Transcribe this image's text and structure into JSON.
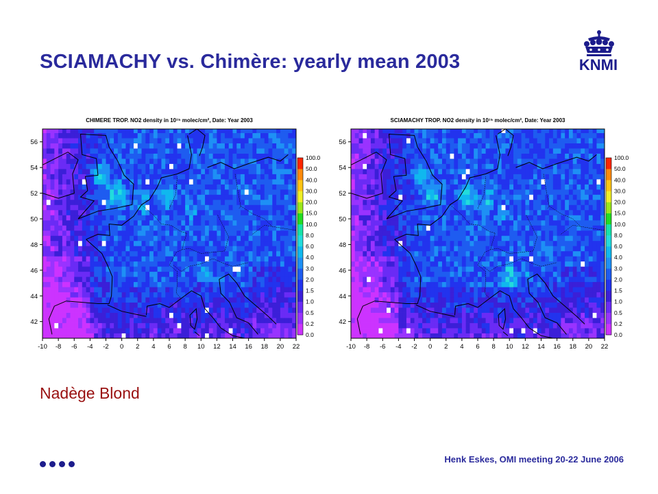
{
  "slide": {
    "title": "SCIAMACHY vs. Chimère: yearly mean 2003",
    "author": "Nadège Blond",
    "footer": "Henk Eskes, OMI meeting 20-22 June 2006",
    "logo_text": "KNMI",
    "logo_icon": "crown-icon",
    "colors": {
      "title": "#2a2a9c",
      "author": "#991010",
      "logo": "#1c1c8c"
    }
  },
  "chart_data": [
    {
      "type": "heatmap",
      "title": "CHIMERE TROP. NO2 density in 10¹⁵ molec/cm², Date: Year 2003",
      "xticks": [
        "-10",
        "-8",
        "-6",
        "-4",
        "-2",
        "0",
        "2",
        "4",
        "6",
        "8",
        "10",
        "12",
        "14",
        "16",
        "18",
        "20",
        "22"
      ],
      "yticks": [
        "42",
        "44",
        "46",
        "48",
        "50",
        "52",
        "54",
        "56"
      ],
      "xlim": [
        -10,
        22
      ],
      "ylim": [
        40.7,
        57
      ],
      "colorbar": {
        "labels": [
          "0.0",
          "0.2",
          "0.5",
          "1.0",
          "1.5",
          "2.0",
          "3.0",
          "4.0",
          "6.0",
          "8.0",
          "10.0",
          "15.0",
          "20.0",
          "30.0",
          "40.0",
          "50.0",
          "100.0"
        ],
        "colors": [
          "#cc33ff",
          "#9933ff",
          "#6a2bf5",
          "#3b1fd8",
          "#2233ee",
          "#1e5cf0",
          "#1e90f5",
          "#10b8ee",
          "#22dcdc",
          "#16e3a8",
          "#22dd22",
          "#9be81a",
          "#f0f026",
          "#ffc414",
          "#ff8a0a",
          "#ff2600"
        ]
      },
      "hotspots": [
        {
          "lon": -3,
          "lat": 53.4,
          "intensity": 7.5,
          "r": 1.5
        },
        {
          "lon": -1,
          "lat": 51.8,
          "intensity": 7.8,
          "r": 1.8
        },
        {
          "lon": 2.5,
          "lat": 51.1,
          "intensity": 7.2,
          "r": 1.6
        },
        {
          "lon": 5.5,
          "lat": 51.5,
          "intensity": 7.3,
          "r": 1.6
        },
        {
          "lon": 8.5,
          "lat": 50.4,
          "intensity": 6.5,
          "r": 1.6
        },
        {
          "lon": 2.3,
          "lat": 48.9,
          "intensity": 6.0,
          "r": 1.2
        },
        {
          "lon": 10.5,
          "lat": 45.5,
          "intensity": 6.5,
          "r": 1.8
        },
        {
          "lon": 18.5,
          "lat": 50.0,
          "intensity": 5.5,
          "r": 1.2
        },
        {
          "lon": 6.5,
          "lat": 44.0,
          "intensity": 5.5,
          "r": 0.9
        }
      ]
    },
    {
      "type": "heatmap",
      "title": "SCIAMACHY TROP. NO2 density in 10¹⁵ molec/cm², Date: Year 2003",
      "xticks": [
        "-10",
        "-8",
        "-6",
        "-4",
        "-2",
        "0",
        "2",
        "4",
        "6",
        "8",
        "10",
        "12",
        "14",
        "16",
        "18",
        "20",
        "22"
      ],
      "yticks": [
        "42",
        "44",
        "46",
        "48",
        "50",
        "52",
        "54",
        "56"
      ],
      "xlim": [
        -10,
        22
      ],
      "ylim": [
        40.7,
        57
      ],
      "colorbar": {
        "labels": [
          "0.0",
          "0.2",
          "0.5",
          "1.0",
          "1.5",
          "2.0",
          "3.0",
          "4.0",
          "6.0",
          "8.0",
          "10.0",
          "15.0",
          "20.0",
          "30.0",
          "40.0",
          "50.0",
          "100.0"
        ],
        "colors": [
          "#cc33ff",
          "#9933ff",
          "#6a2bf5",
          "#3b1fd8",
          "#2233ee",
          "#1e5cf0",
          "#1e90f5",
          "#10b8ee",
          "#22dcdc",
          "#16e3a8",
          "#22dd22",
          "#9be81a",
          "#f0f026",
          "#ffc414",
          "#ff8a0a",
          "#ff2600"
        ]
      },
      "hotspots": [
        {
          "lon": -1.5,
          "lat": 53.2,
          "intensity": 7.4,
          "r": 1.5
        },
        {
          "lon": 0,
          "lat": 51.8,
          "intensity": 7.6,
          "r": 1.7
        },
        {
          "lon": 4.5,
          "lat": 51.5,
          "intensity": 7.7,
          "r": 1.8
        },
        {
          "lon": 7,
          "lat": 51.2,
          "intensity": 7.5,
          "r": 1.5
        },
        {
          "lon": 8.8,
          "lat": 50.0,
          "intensity": 6.2,
          "r": 1.4
        },
        {
          "lon": 2.3,
          "lat": 48.8,
          "intensity": 6.0,
          "r": 1.0
        },
        {
          "lon": 9.8,
          "lat": 45.3,
          "intensity": 7.6,
          "r": 1.8
        },
        {
          "lon": 12,
          "lat": 45.5,
          "intensity": 6.8,
          "r": 1.2
        },
        {
          "lon": 19,
          "lat": 50.1,
          "intensity": 5.5,
          "r": 1.2
        }
      ]
    }
  ]
}
